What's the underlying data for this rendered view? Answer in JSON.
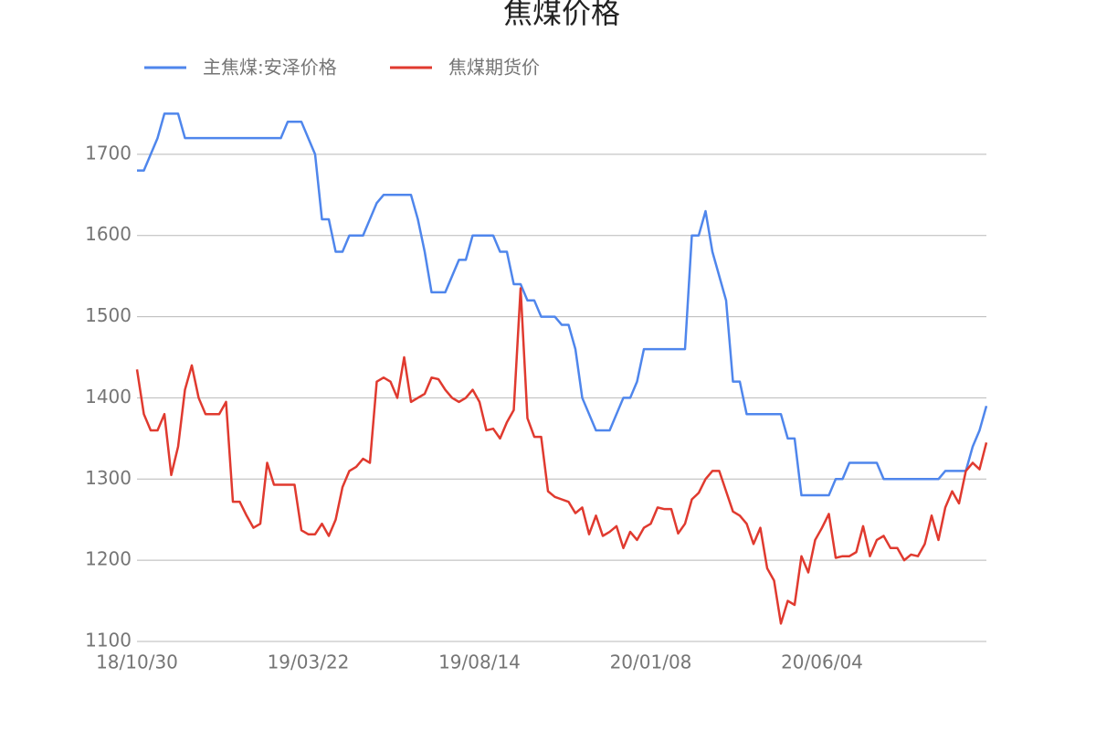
{
  "chart_data": {
    "type": "line",
    "title": "焦煤价格",
    "categories": [
      "18/10/30",
      null,
      null,
      null,
      null,
      null,
      null,
      null,
      null,
      null,
      null,
      null,
      null,
      null,
      null,
      null,
      null,
      null,
      null,
      null,
      null,
      null,
      null,
      null,
      null,
      "19/03/22",
      null,
      null,
      null,
      null,
      null,
      null,
      null,
      null,
      null,
      null,
      null,
      null,
      null,
      null,
      null,
      null,
      null,
      null,
      null,
      null,
      null,
      null,
      null,
      null,
      "19/08/14",
      null,
      null,
      null,
      null,
      null,
      null,
      null,
      null,
      null,
      null,
      null,
      null,
      null,
      null,
      null,
      null,
      null,
      null,
      null,
      null,
      null,
      null,
      null,
      null,
      "20/01/08",
      null,
      null,
      null,
      null,
      null,
      null,
      null,
      null,
      null,
      null,
      null,
      null,
      null,
      null,
      null,
      null,
      null,
      null,
      null,
      null,
      null,
      null,
      null,
      null,
      "20/06/04",
      null,
      null,
      null,
      null,
      null,
      null,
      null,
      null,
      null,
      null,
      null,
      null,
      null,
      null,
      null,
      null,
      null,
      null,
      null,
      null,
      null,
      null,
      null,
      null
    ],
    "series": [
      {
        "name": "主焦煤:安泽价格",
        "color": "#4f86ec",
        "values": [
          1680,
          1680,
          1700,
          1720,
          1750,
          1750,
          1750,
          1720,
          1720,
          1720,
          1720,
          1720,
          1720,
          1720,
          1720,
          1720,
          1720,
          1720,
          1720,
          1720,
          1720,
          1720,
          1740,
          1740,
          1740,
          1720,
          1700,
          1620,
          1620,
          1580,
          1580,
          1600,
          1600,
          1600,
          1620,
          1640,
          1650,
          1650,
          1650,
          1650,
          1650,
          1620,
          1580,
          1530,
          1530,
          1530,
          1550,
          1570,
          1570,
          1600,
          1600,
          1600,
          1600,
          1580,
          1580,
          1540,
          1540,
          1520,
          1520,
          1500,
          1500,
          1500,
          1490,
          1490,
          1460,
          1400,
          1380,
          1360,
          1360,
          1360,
          1380,
          1400,
          1400,
          1420,
          1460,
          1460,
          1460,
          1460,
          1460,
          1460,
          1460,
          1600,
          1600,
          1630,
          1580,
          1550,
          1520,
          1420,
          1420,
          1380,
          1380,
          1380,
          1380,
          1380,
          1380,
          1350,
          1350,
          1280,
          1280,
          1280,
          1280,
          1280,
          1300,
          1300,
          1320,
          1320,
          1320,
          1320,
          1320,
          1300,
          1300,
          1300,
          1300,
          1300,
          1300,
          1300,
          1300,
          1300,
          1310,
          1310,
          1310,
          1310,
          1340,
          1360,
          1390
        ]
      },
      {
        "name": "焦煤期货价",
        "color": "#e03a2f",
        "values": [
          1435,
          1380,
          1360,
          1360,
          1380,
          1305,
          1340,
          1410,
          1440,
          1400,
          1380,
          1380,
          1380,
          1395,
          1272,
          1272,
          1255,
          1240,
          1245,
          1320,
          1293,
          1293,
          1293,
          1293,
          1237,
          1232,
          1232,
          1245,
          1230,
          1250,
          1290,
          1310,
          1315,
          1325,
          1320,
          1420,
          1425,
          1420,
          1400,
          1450,
          1395,
          1400,
          1405,
          1425,
          1423,
          1410,
          1400,
          1395,
          1400,
          1410,
          1395,
          1360,
          1362,
          1350,
          1370,
          1385,
          1535,
          1375,
          1352,
          1352,
          1285,
          1278,
          1275,
          1272,
          1258,
          1265,
          1232,
          1255,
          1230,
          1235,
          1242,
          1215,
          1235,
          1225,
          1240,
          1245,
          1265,
          1263,
          1263,
          1233,
          1245,
          1275,
          1283,
          1300,
          1310,
          1310,
          1285,
          1260,
          1255,
          1245,
          1220,
          1240,
          1190,
          1175,
          1122,
          1150,
          1145,
          1205,
          1185,
          1225,
          1240,
          1257,
          1203,
          1205,
          1205,
          1210,
          1242,
          1205,
          1225,
          1230,
          1215,
          1215,
          1200,
          1207,
          1205,
          1220,
          1255,
          1225,
          1265,
          1285,
          1270,
          1310,
          1320,
          1312,
          1345
        ]
      }
    ],
    "ylim": [
      1100,
      1800
    ],
    "yticks": [
      1100,
      1200,
      1300,
      1400,
      1500,
      1600,
      1700
    ],
    "grid": true
  }
}
